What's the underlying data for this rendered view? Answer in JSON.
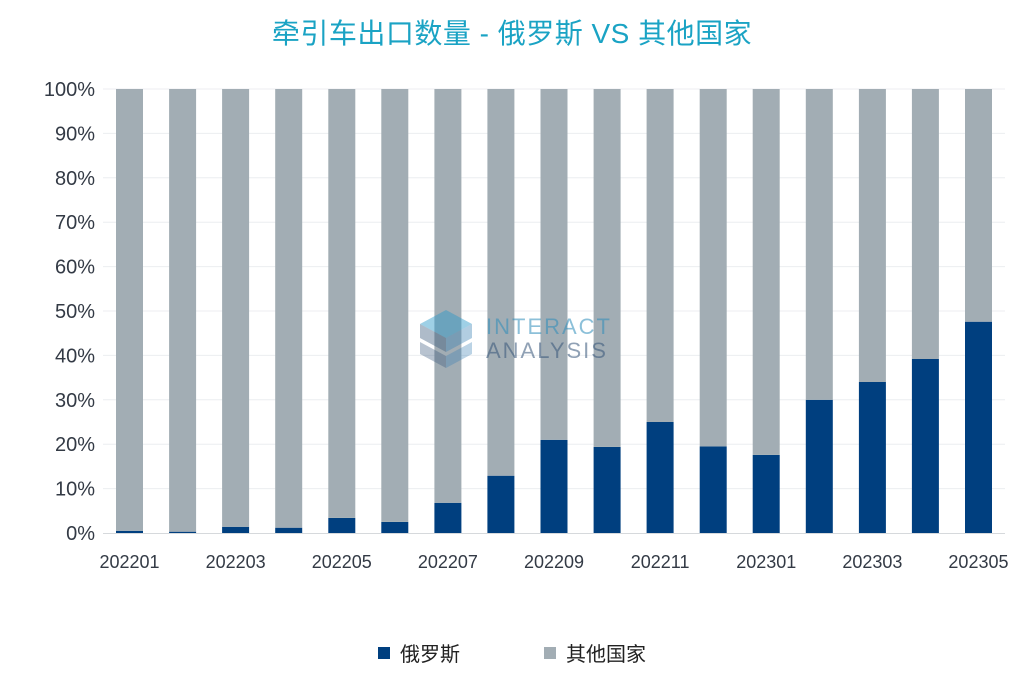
{
  "chart_data": {
    "type": "bar",
    "stacked": true,
    "percent": true,
    "title": "牵引车出口数量 - 俄罗斯 VS 其他国家",
    "categories": [
      "202201",
      "202202",
      "202203",
      "202204",
      "202205",
      "202206",
      "202207",
      "202208",
      "202209",
      "202210",
      "202211",
      "202212",
      "202301",
      "202302",
      "202303",
      "202304",
      "202305"
    ],
    "x_tick_labels": [
      "202201",
      "202203",
      "202205",
      "202207",
      "202209",
      "202211",
      "202301",
      "202303",
      "202305"
    ],
    "y_tick_labels": [
      "0%",
      "10%",
      "20%",
      "30%",
      "40%",
      "50%",
      "60%",
      "70%",
      "80%",
      "90%",
      "100%"
    ],
    "ylim": [
      0,
      100
    ],
    "series": [
      {
        "name": "俄罗斯",
        "color": "#003f7f",
        "values": [
          0.5,
          0.3,
          1.4,
          1.2,
          3.4,
          2.5,
          6.8,
          12.9,
          21.0,
          19.4,
          25.0,
          19.5,
          17.6,
          30.0,
          34.0,
          39.2,
          47.6
        ]
      },
      {
        "name": "其他国家",
        "color": "#a2adb4",
        "values": [
          99.5,
          99.7,
          98.6,
          98.8,
          96.6,
          97.5,
          93.2,
          87.1,
          79.0,
          80.6,
          75.0,
          80.5,
          82.4,
          70.0,
          66.0,
          60.8,
          52.4
        ]
      }
    ],
    "legend": [
      "俄罗斯",
      "其他国家"
    ],
    "legend_position": "bottom",
    "grid": true
  },
  "watermark": {
    "line1": "INTERACT",
    "line2": "ANALYSIS"
  }
}
